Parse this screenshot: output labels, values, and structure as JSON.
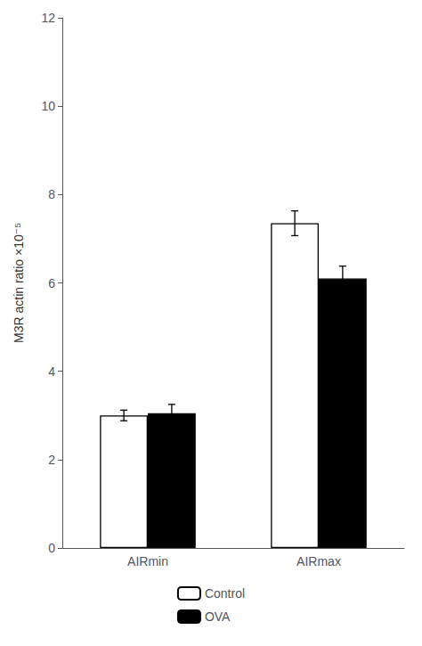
{
  "chart_data": {
    "type": "bar",
    "ylabel": "M3R actin ratio ×10⁻⁵",
    "categories": [
      "AIRmin",
      "AIRmax"
    ],
    "series": [
      {
        "name": "Control",
        "color": "#ffffff",
        "values": [
          3.0,
          7.35
        ],
        "errors": [
          0.12,
          0.28
        ]
      },
      {
        "name": "OVA",
        "color": "#000000",
        "values": [
          3.05,
          6.1
        ],
        "errors": [
          0.2,
          0.28
        ]
      }
    ],
    "ylim": [
      0,
      12
    ],
    "yticks": [
      0,
      2,
      4,
      6,
      8,
      10,
      12
    ],
    "grid": false,
    "legend": "bottom"
  }
}
